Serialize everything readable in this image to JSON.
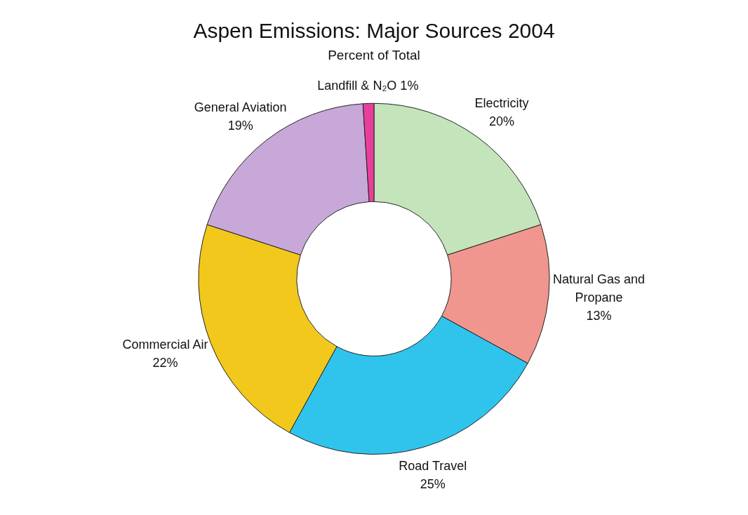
{
  "chart_data": {
    "type": "donut",
    "title": "Aspen Emissions: Major Sources 2004",
    "subtitle": "Percent of Total",
    "categories": [
      "Electricity",
      "Natural Gas and Propane",
      "Road Travel",
      "Commercial Air",
      "General Aviation",
      "Landfill & N₂O"
    ],
    "values": [
      20,
      13,
      25,
      22,
      19,
      1
    ],
    "colors": [
      "#c4e4bc",
      "#f0968e",
      "#30c4ec",
      "#f2c81c",
      "#c8a8d8",
      "#e8409a"
    ],
    "value_labels": [
      "20%",
      "13%",
      "25%",
      "22%",
      "19%",
      "1%"
    ],
    "legend": false
  }
}
